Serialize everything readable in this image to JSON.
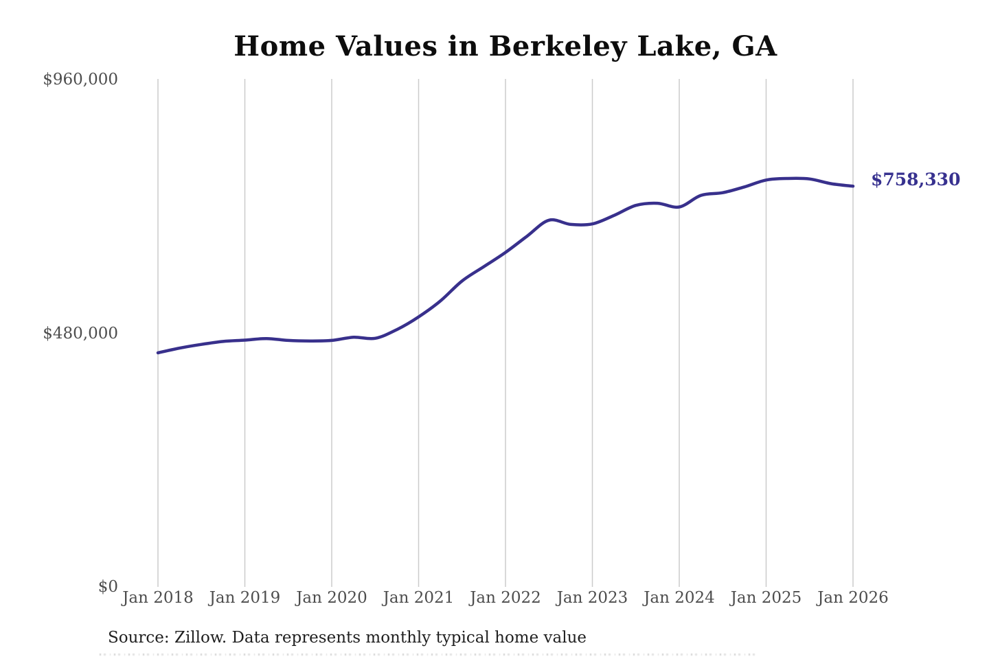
{
  "chart": {
    "title": "Home Values in Berkeley Lake, GA",
    "source_note": "Source: Zillow. Data represents monthly typical home value",
    "colors": {
      "line": "#38308c",
      "end_label": "#37318f",
      "grid": "#cbcbcb",
      "axis_labels": "#4d4d4d",
      "title": "#0d0d0d",
      "source": "#1f1f1f",
      "background": "#ffffff"
    }
  },
  "chart_data": {
    "type": "line",
    "title": "Home Values in Berkeley Lake, GA",
    "xlabel": "",
    "ylabel": "",
    "grid": "vertical-only",
    "legend": "none",
    "xlim": [
      2018,
      2026
    ],
    "ylim": [
      0,
      960000
    ],
    "x_ticks": [
      {
        "label": "Jan 2018",
        "year": 2018
      },
      {
        "label": "Jan 2019",
        "year": 2019
      },
      {
        "label": "Jan 2020",
        "year": 2020
      },
      {
        "label": "Jan 2021",
        "year": 2021
      },
      {
        "label": "Jan 2022",
        "year": 2022
      },
      {
        "label": "Jan 2023",
        "year": 2023
      },
      {
        "label": "Jan 2024",
        "year": 2024
      },
      {
        "label": "Jan 2025",
        "year": 2025
      },
      {
        "label": "Jan 2026",
        "year": 2026
      }
    ],
    "y_ticks": [
      {
        "label": "$0",
        "value": 0
      },
      {
        "label": "$480,000",
        "value": 480000
      },
      {
        "label": "$960,000",
        "value": 960000
      }
    ],
    "final_value": 758330,
    "final_value_label": "$758,330",
    "series": [
      {
        "name": "Typical home value",
        "x": [
          2018.0,
          2018.25,
          2018.5,
          2018.75,
          2019.0,
          2019.25,
          2019.5,
          2019.75,
          2020.0,
          2020.25,
          2020.5,
          2020.75,
          2021.0,
          2021.25,
          2021.5,
          2021.75,
          2022.0,
          2022.25,
          2022.5,
          2022.75,
          2023.0,
          2023.25,
          2023.5,
          2023.75,
          2024.0,
          2024.25,
          2024.5,
          2024.75,
          2025.0,
          2025.25,
          2025.5,
          2025.75,
          2026.0
        ],
        "values": [
          443000,
          452000,
          459000,
          464500,
          467000,
          470000,
          466500,
          465500,
          466500,
          472500,
          470500,
          487000,
          511000,
          541000,
          579000,
          606000,
          633000,
          664000,
          694000,
          686000,
          687000,
          703000,
          722000,
          726000,
          719000,
          741000,
          746000,
          757000,
          770000,
          773000,
          772000,
          763000,
          758330
        ]
      }
    ]
  }
}
